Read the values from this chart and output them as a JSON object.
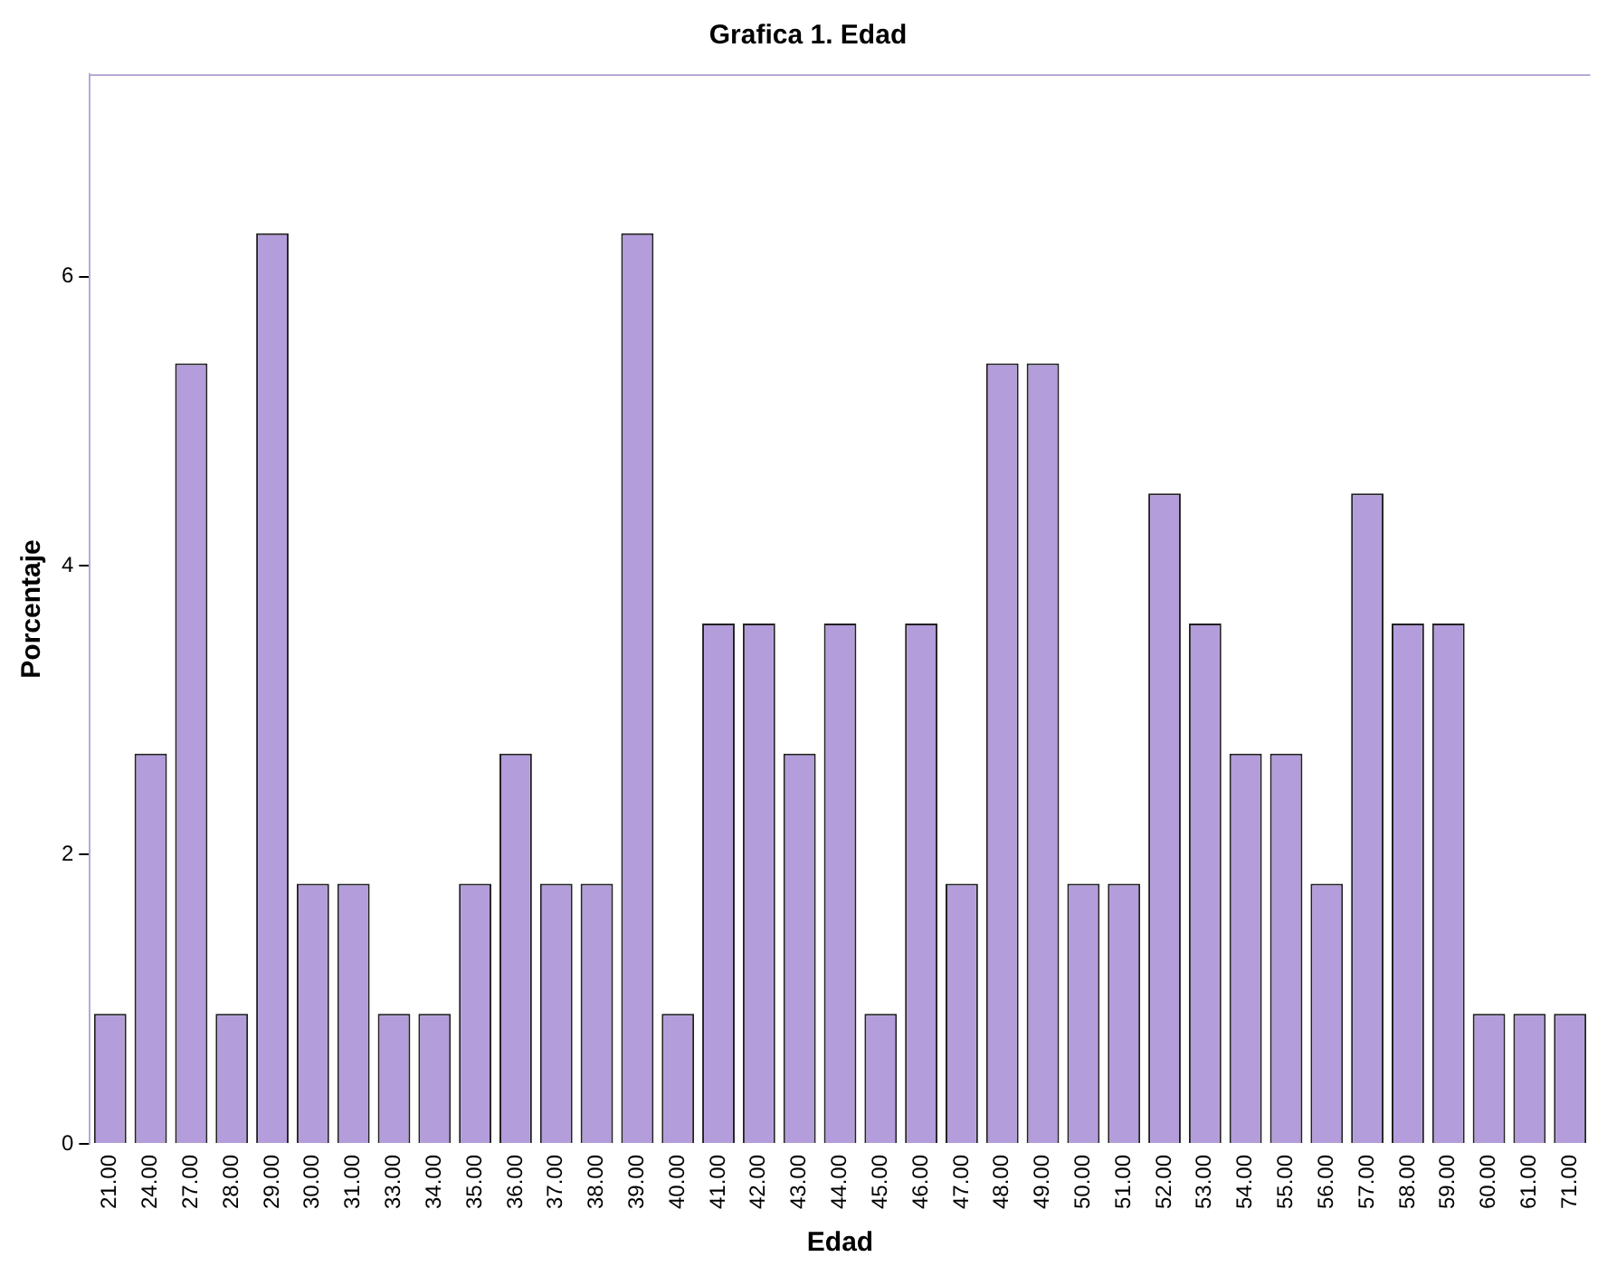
{
  "chart_data": {
    "type": "bar",
    "title": "Grafica 1. Edad",
    "xlabel": "Edad",
    "ylabel": "Porcentaje",
    "categories": [
      "21.00",
      "24.00",
      "27.00",
      "28.00",
      "29.00",
      "30.00",
      "31.00",
      "33.00",
      "34.00",
      "35.00",
      "36.00",
      "37.00",
      "38.00",
      "39.00",
      "40.00",
      "41.00",
      "42.00",
      "43.00",
      "44.00",
      "45.00",
      "46.00",
      "47.00",
      "48.00",
      "49.00",
      "50.00",
      "51.00",
      "52.00",
      "53.00",
      "54.00",
      "55.00",
      "56.00",
      "57.00",
      "58.00",
      "59.00",
      "60.00",
      "61.00",
      "71.00"
    ],
    "values": [
      0.9,
      2.7,
      5.4,
      0.9,
      6.3,
      1.8,
      1.8,
      0.9,
      0.9,
      1.8,
      2.7,
      1.8,
      1.8,
      6.3,
      0.9,
      3.6,
      3.6,
      2.7,
      3.6,
      0.9,
      3.6,
      1.8,
      5.4,
      5.4,
      1.8,
      1.8,
      4.5,
      3.6,
      2.7,
      2.7,
      1.8,
      4.5,
      3.6,
      3.6,
      0.9,
      0.9,
      0.9
    ],
    "color": "#b39ddb",
    "ylim": [
      0,
      7.4
    ],
    "yticks": [
      0,
      2,
      4,
      6
    ],
    "grid": false,
    "legend": false
  }
}
